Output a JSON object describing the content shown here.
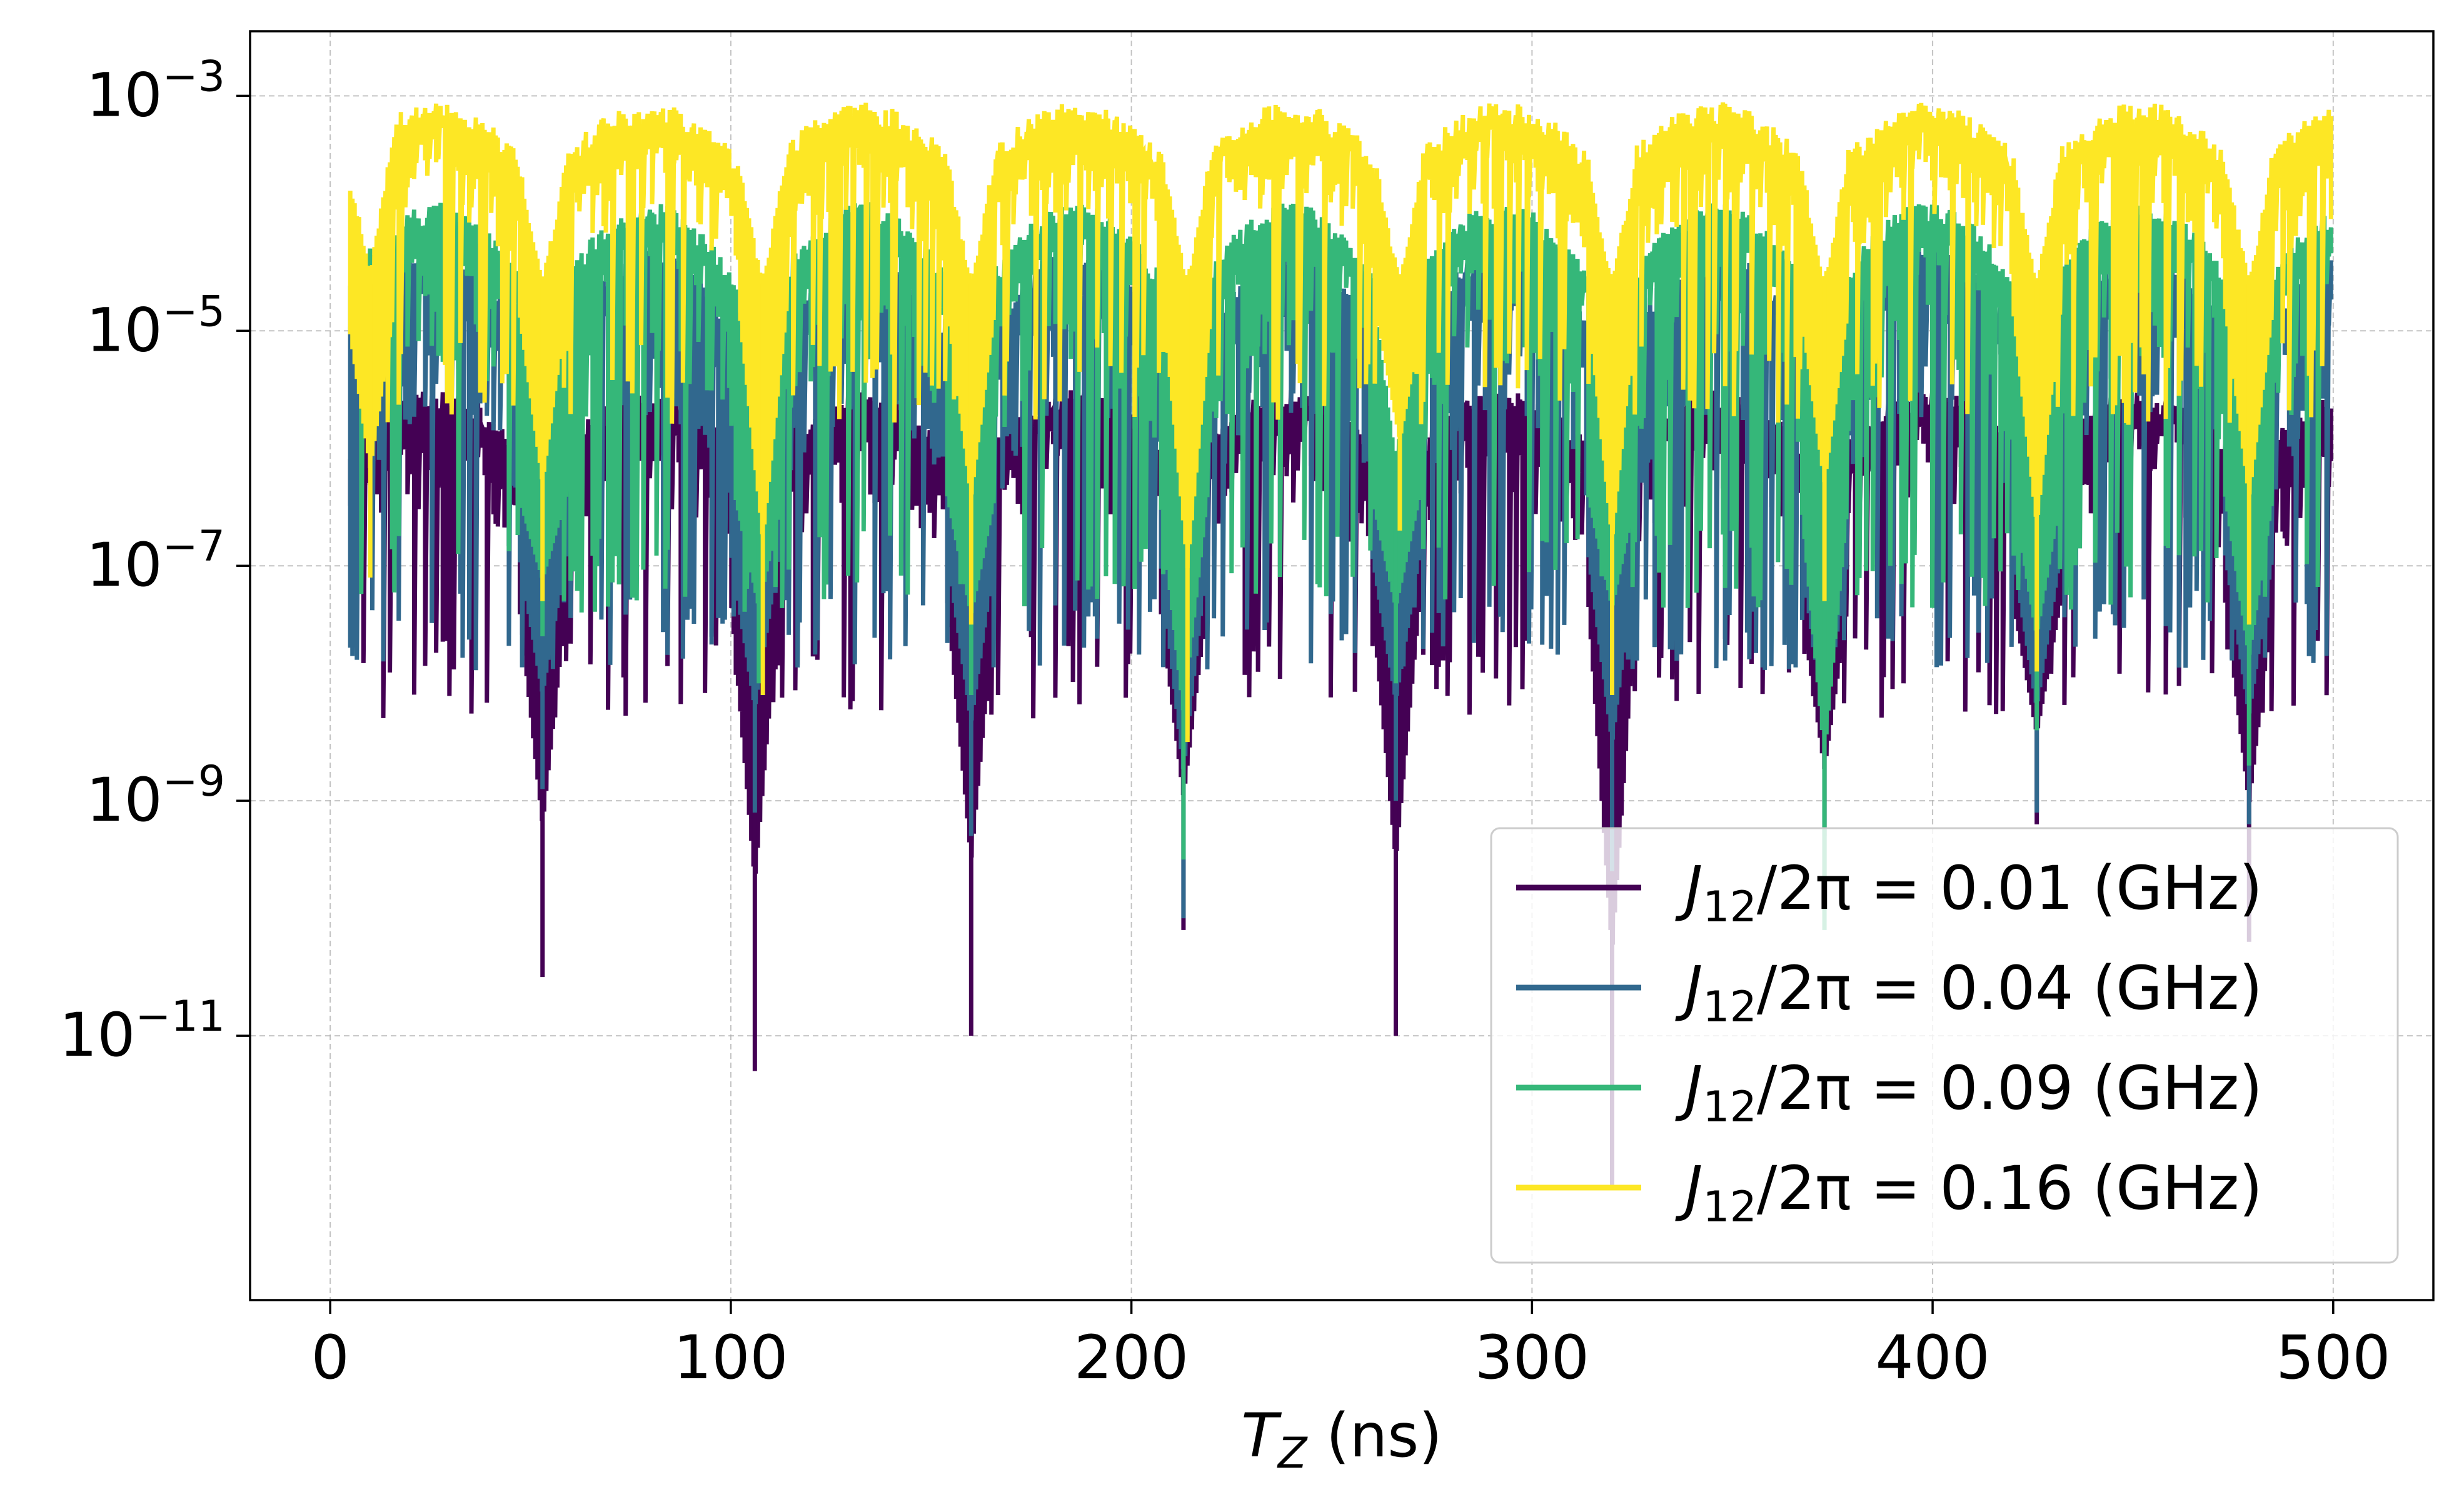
{
  "chart_data": {
    "type": "line",
    "title": "",
    "xlabel": "T_Z (ns)",
    "xlabel_parts": {
      "sym": "T",
      "sub": "Z",
      "unit": " (ns)"
    },
    "ylabel": "",
    "yscale": "log",
    "xlim": [
      -20,
      525
    ],
    "ylim_log10": [
      -13.25,
      -2.45
    ],
    "grid": true,
    "legend_position": "lower-right",
    "x_ticks": [
      0,
      100,
      200,
      300,
      400,
      500
    ],
    "x_tick_labels": [
      "0",
      "100",
      "200",
      "300",
      "400",
      "500"
    ],
    "y_ticks_log10": [
      -3,
      -5,
      -7,
      -9,
      -11
    ],
    "y_tick_labels": [
      {
        "base": "10",
        "exp": "−3"
      },
      {
        "base": "10",
        "exp": "−5"
      },
      {
        "base": "10",
        "exp": "−7"
      },
      {
        "base": "10",
        "exp": "−9"
      },
      {
        "base": "10",
        "exp": "−11"
      }
    ],
    "x_range": [
      5,
      500
    ],
    "lobe_period_ns": 53.2,
    "series": [
      {
        "name": "J12/2π = 0.01 (GHz)",
        "legend_parts": {
          "sym": "J",
          "sub": "12",
          "rest": "/2π = 0.01 (GHz)"
        },
        "color": "#440154",
        "envelope_peak_log10": -5.5,
        "typical_floor_log10": -7.3,
        "deep_dips": [
          {
            "x": 53,
            "log10": -10.5
          },
          {
            "x": 106,
            "log10": -11.3
          },
          {
            "x": 160,
            "log10": -11.0
          },
          {
            "x": 213,
            "log10": -10.1
          },
          {
            "x": 266,
            "log10": -11.0
          },
          {
            "x": 320,
            "log10": -12.3
          },
          {
            "x": 373,
            "log10": -9.7
          },
          {
            "x": 426,
            "log10": -9.2
          },
          {
            "x": 479,
            "log10": -10.2
          }
        ]
      },
      {
        "name": "J12/2π = 0.04 (GHz)",
        "legend_parts": {
          "sym": "J",
          "sub": "12",
          "rest": "/2π = 0.04 (GHz)"
        },
        "color": "#31688e",
        "envelope_peak_log10": -4.3,
        "typical_floor_log10": -6.9,
        "deep_dips": [
          {
            "x": 53,
            "log10": -8.9
          },
          {
            "x": 106,
            "log10": -9.1
          },
          {
            "x": 160,
            "log10": -9.3
          },
          {
            "x": 213,
            "log10": -10.0
          },
          {
            "x": 266,
            "log10": -9.0
          },
          {
            "x": 320,
            "log10": -9.6
          },
          {
            "x": 373,
            "log10": -9.3
          },
          {
            "x": 426,
            "log10": -9.1
          },
          {
            "x": 479,
            "log10": -9.2
          }
        ]
      },
      {
        "name": "J12/2π = 0.09 (GHz)",
        "legend_parts": {
          "sym": "J",
          "sub": "12",
          "rest": "/2π = 0.09 (GHz)"
        },
        "color": "#35b779",
        "envelope_peak_log10": -3.9,
        "typical_floor_log10": -6.4,
        "deep_dips": [
          {
            "x": 53,
            "log10": -7.6
          },
          {
            "x": 107,
            "log10": -8.0
          },
          {
            "x": 160,
            "log10": -8.1
          },
          {
            "x": 213,
            "log10": -9.5
          },
          {
            "x": 266,
            "log10": -8.0
          },
          {
            "x": 320,
            "log10": -8.0
          },
          {
            "x": 373,
            "log10": -10.1
          },
          {
            "x": 426,
            "log10": -8.4
          },
          {
            "x": 479,
            "log10": -8.7
          }
        ]
      },
      {
        "name": "J12/2π = 0.16 (GHz)",
        "legend_parts": {
          "sym": "J",
          "sub": "12",
          "rest": "/2π = 0.16 (GHz)"
        },
        "color": "#fde725",
        "envelope_peak_log10": -3.05,
        "typical_floor_log10": -4.8,
        "deep_dips": [
          {
            "x": 10,
            "log10": -7.1
          },
          {
            "x": 53,
            "log10": -7.3
          },
          {
            "x": 108,
            "log10": -8.1
          },
          {
            "x": 160,
            "log10": -7.5
          },
          {
            "x": 214,
            "log10": -8.5
          },
          {
            "x": 267,
            "log10": -6.7
          },
          {
            "x": 320,
            "log10": -8.1
          },
          {
            "x": 373,
            "log10": -7.3
          },
          {
            "x": 426,
            "log10": -7.9
          },
          {
            "x": 479,
            "log10": -7.5
          }
        ]
      }
    ]
  }
}
